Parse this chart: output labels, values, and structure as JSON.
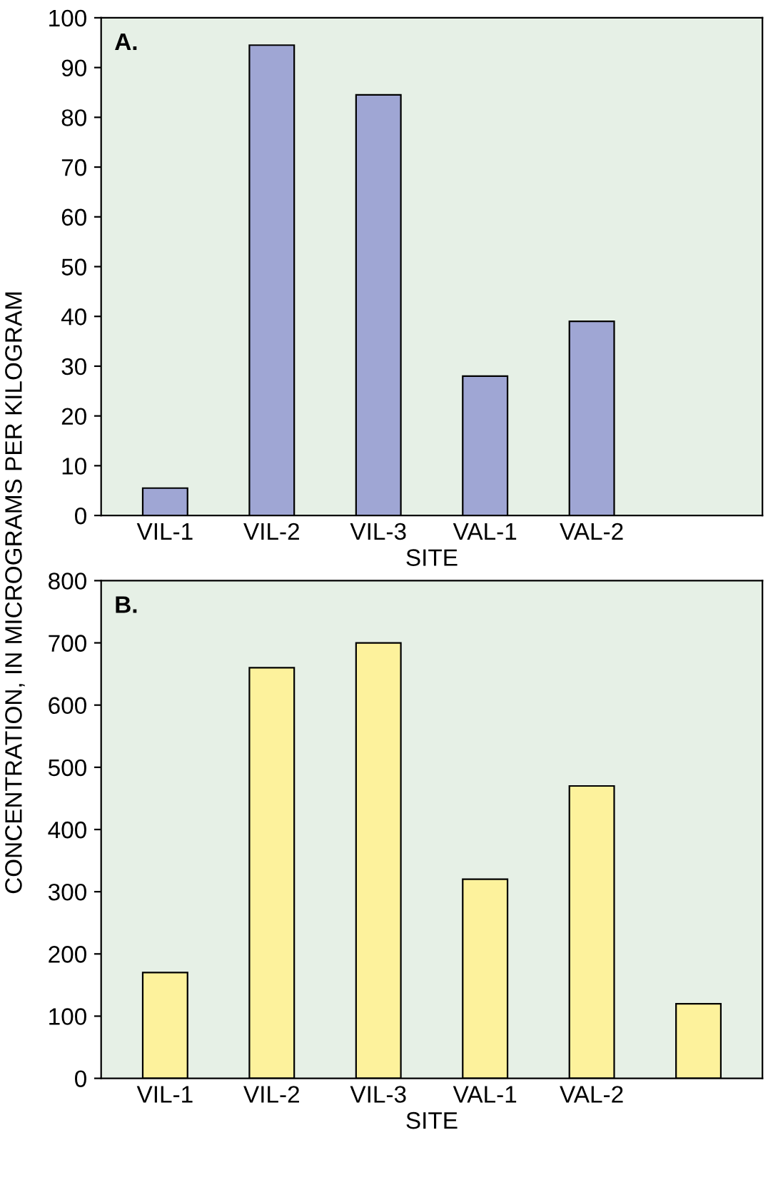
{
  "chart_data": [
    {
      "type": "bar",
      "title": "A.",
      "xlabel": "SITE",
      "categories": [
        "VIL-1",
        "VIL-2",
        "VIL-3",
        "VAL-1",
        "VAL-2",
        null
      ],
      "values": [
        5.5,
        94.5,
        84.5,
        28,
        39,
        null
      ],
      "color": "#9fa6d4",
      "ylim": [
        0,
        100
      ],
      "yticks": [
        0,
        10,
        20,
        30,
        40,
        50,
        60,
        70,
        80,
        90,
        100
      ],
      "grid": false
    },
    {
      "type": "bar",
      "title": "B.",
      "xlabel": "SITE",
      "ylabel": "CONCENTRATION, IN MICROGRAMS PER KILOGRAM",
      "categories": [
        "VIL-1",
        "VIL-2",
        "VIL-3",
        "VAL-1",
        "VAL-2",
        null
      ],
      "values": [
        170,
        660,
        700,
        320,
        470,
        120
      ],
      "color": "#fdf29c",
      "ylim": [
        0,
        800
      ],
      "yticks": [
        0,
        100,
        200,
        300,
        400,
        500,
        600,
        700,
        800
      ],
      "grid": false
    }
  ]
}
